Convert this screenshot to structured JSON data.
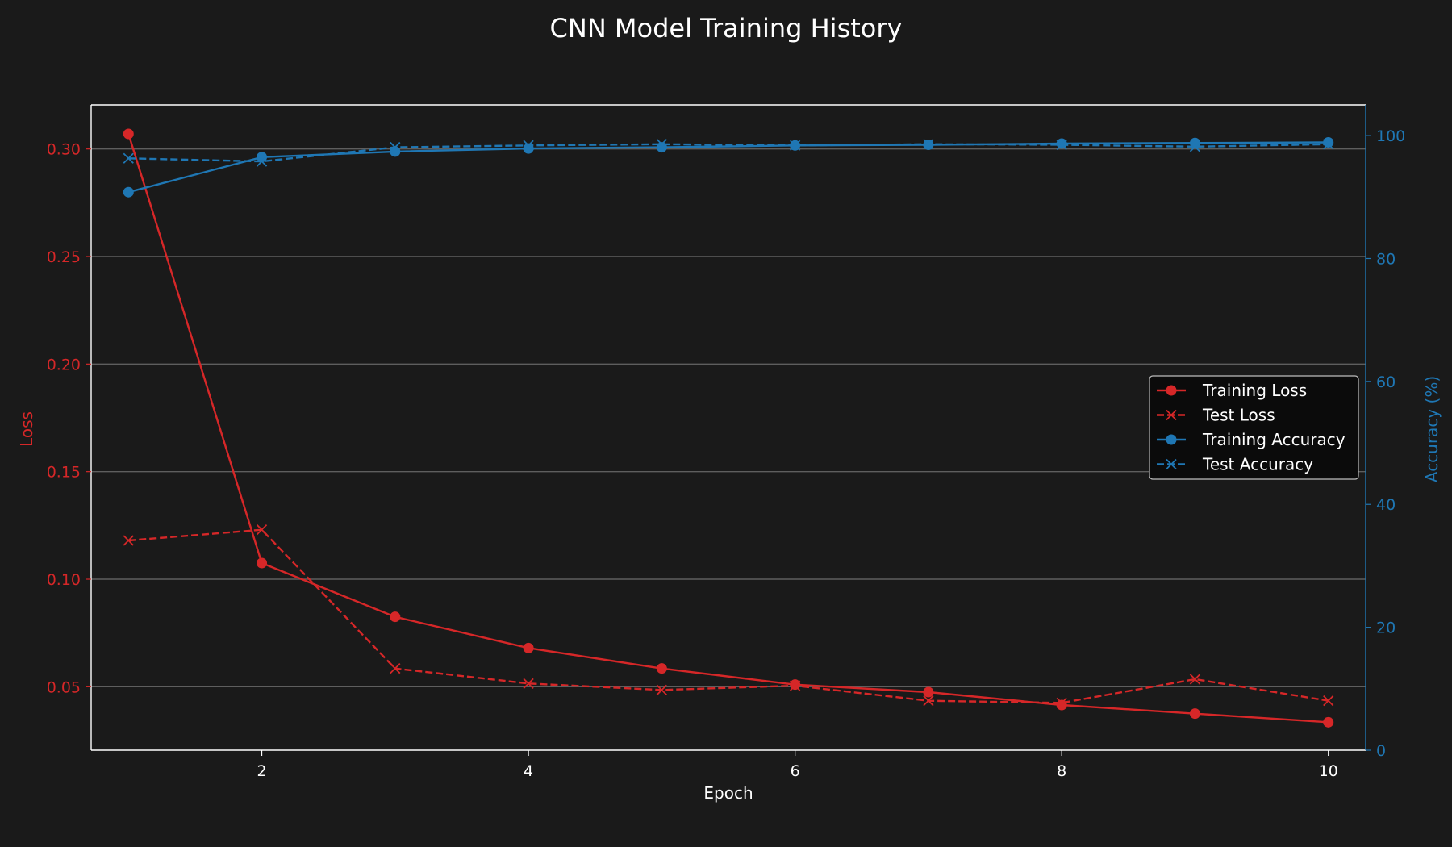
{
  "chart_data": {
    "type": "line",
    "title": "CNN Model Training History",
    "xlabel": "Epoch",
    "ylabel_left": "Loss",
    "ylabel_right": "Accuracy (%)",
    "x": [
      1,
      2,
      3,
      4,
      5,
      6,
      7,
      8,
      9,
      10
    ],
    "xlim": [
      0.72,
      10.28
    ],
    "x_ticks": [
      2,
      4,
      6,
      8,
      10
    ],
    "ylim_left": [
      0.0205,
      0.3205
    ],
    "y_ticks_left": [
      0.05,
      0.1,
      0.15,
      0.2,
      0.25,
      0.3
    ],
    "y_tick_labels_left": [
      "0.05",
      "0.10",
      "0.15",
      "0.20",
      "0.25",
      "0.30"
    ],
    "ylim_right": [
      0,
      105
    ],
    "y_ticks_right": [
      0,
      20,
      40,
      60,
      80,
      100
    ],
    "grid": true,
    "legend_position": "center-right",
    "series": [
      {
        "name": "Training Loss",
        "axis": "left",
        "style": "solid",
        "marker": "circle",
        "color": "#d62728",
        "values": [
          0.307,
          0.1075,
          0.0825,
          0.068,
          0.0585,
          0.051,
          0.0475,
          0.0415,
          0.0375,
          0.0335
        ]
      },
      {
        "name": "Test Loss",
        "axis": "left",
        "style": "dashed",
        "marker": "x",
        "color": "#d62728",
        "values": [
          0.118,
          0.123,
          0.0585,
          0.0515,
          0.0485,
          0.0505,
          0.0435,
          0.0425,
          0.0535,
          0.0435
        ]
      },
      {
        "name": "Training Accuracy",
        "axis": "right",
        "style": "solid",
        "marker": "circle",
        "color": "#1f77b4",
        "values": [
          90.8,
          96.5,
          97.4,
          97.9,
          98.1,
          98.4,
          98.5,
          98.7,
          98.8,
          98.9
        ]
      },
      {
        "name": "Test Accuracy",
        "axis": "right",
        "style": "dashed",
        "marker": "x",
        "color": "#1f77b4",
        "values": [
          96.3,
          95.8,
          98.1,
          98.4,
          98.6,
          98.4,
          98.6,
          98.5,
          98.2,
          98.6
        ]
      }
    ]
  }
}
